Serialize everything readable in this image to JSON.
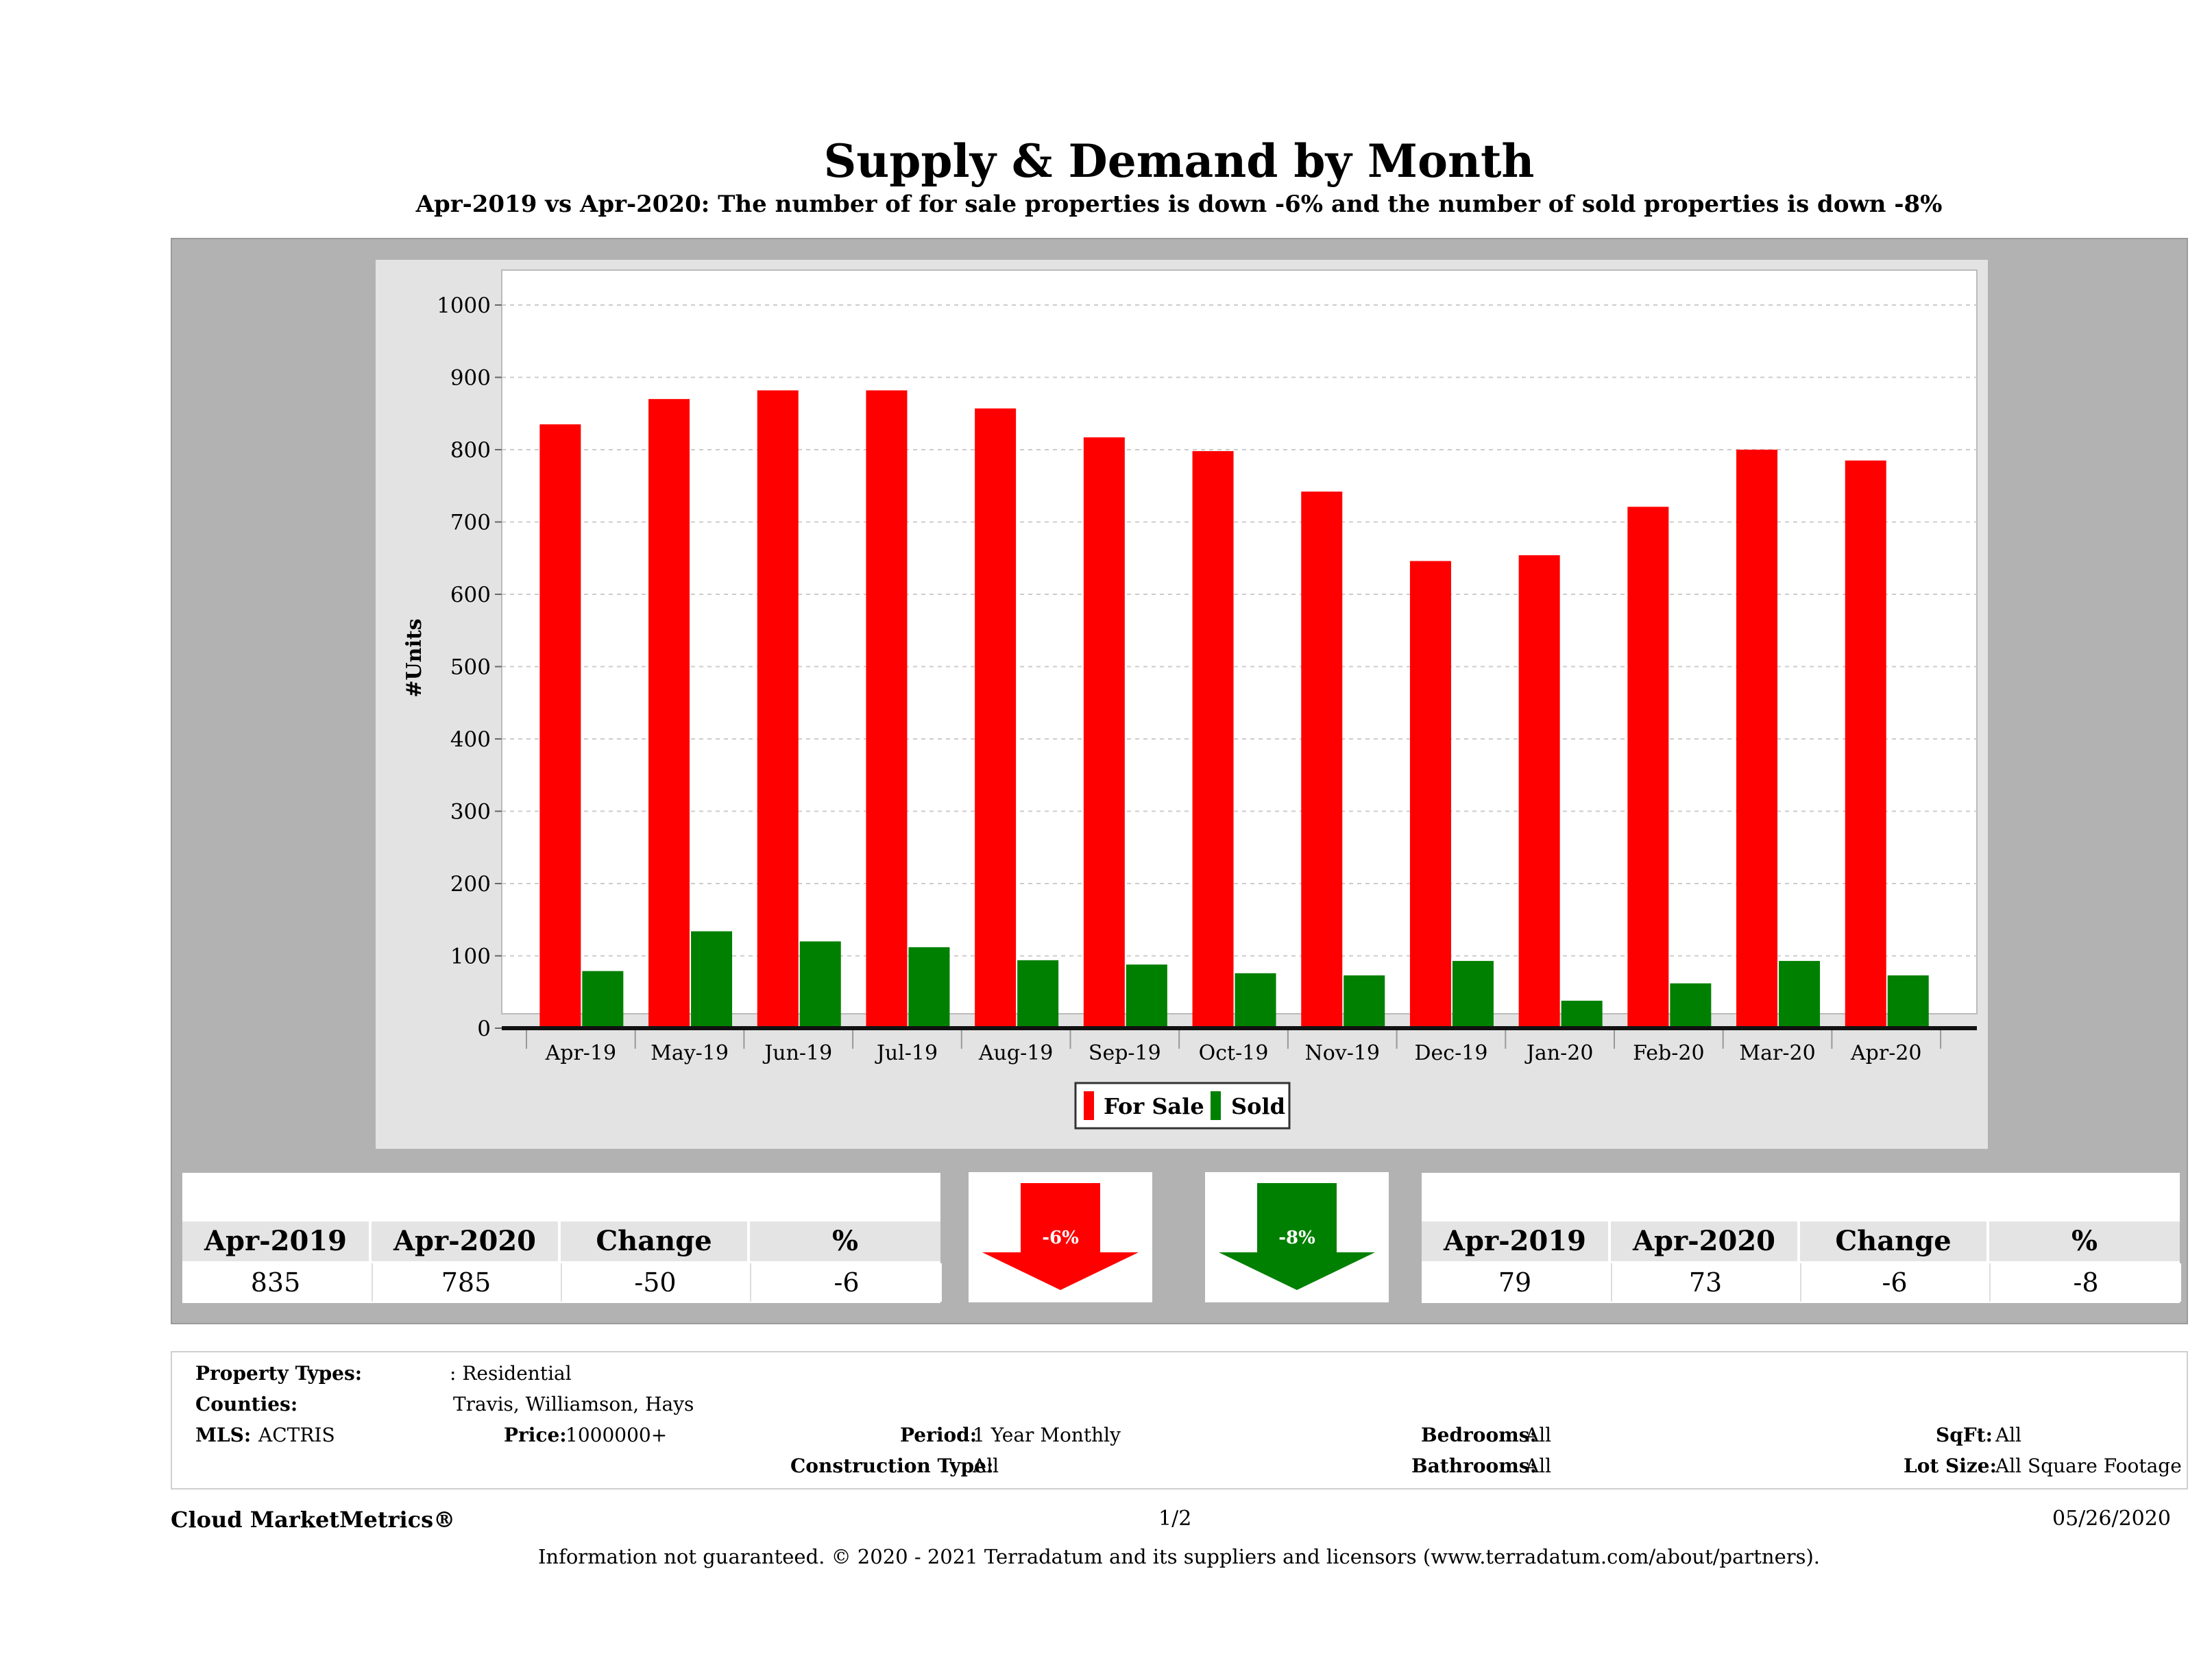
{
  "report": {
    "title": "Supply & Demand by Month",
    "subtitle": "Apr-2019 vs Apr-2020: The number of for sale properties is down -6% and the number of sold properties is down -8%"
  },
  "chart_data": {
    "type": "bar",
    "categories": [
      "Apr-19",
      "May-19",
      "Jun-19",
      "Jul-19",
      "Aug-19",
      "Sep-19",
      "Oct-19",
      "Nov-19",
      "Dec-19",
      "Jan-20",
      "Feb-20",
      "Mar-20",
      "Apr-20"
    ],
    "series": [
      {
        "name": "For Sale",
        "color": "#ff0000",
        "values": [
          835,
          870,
          882,
          882,
          857,
          817,
          798,
          742,
          646,
          654,
          721,
          800,
          785
        ]
      },
      {
        "name": "Sold",
        "color": "#008000",
        "values": [
          79,
          134,
          120,
          112,
          94,
          88,
          76,
          73,
          93,
          38,
          62,
          93,
          73
        ]
      }
    ],
    "ylabel": "#Units",
    "xlabel": "",
    "ylim": [
      0,
      1000
    ],
    "yticks": [
      0,
      100,
      200,
      300,
      400,
      500,
      600,
      700,
      800,
      900,
      1000
    ],
    "grid": true,
    "legend_position": "bottom-center"
  },
  "for_sale_table": {
    "headers": [
      "Apr-2019",
      "Apr-2020",
      "Change",
      "%"
    ],
    "values": [
      "835",
      "785",
      "-50",
      "-6"
    ]
  },
  "sold_table": {
    "headers": [
      "Apr-2019",
      "Apr-2020",
      "Change",
      "%"
    ],
    "values": [
      "79",
      "73",
      "-6",
      "-8"
    ]
  },
  "arrows": {
    "for_sale": {
      "label": "-6%",
      "color": "#ff0000"
    },
    "sold": {
      "label": "-8%",
      "color": "#008000"
    }
  },
  "criteria": {
    "property_types_label": "Property Types:",
    "property_types_value": ": Residential",
    "counties_label": "Counties:",
    "counties_value": "Travis, Williamson, Hays",
    "mls_label": "MLS:",
    "mls_value": "ACTRIS",
    "price_label": "Price:",
    "price_value": "1000000+",
    "period_label": "Period:",
    "period_value": "1 Year Monthly",
    "construction_label": "Construction Type:",
    "construction_value": "All",
    "bedrooms_label": "Bedrooms:",
    "bedrooms_value": "All",
    "bathrooms_label": "Bathrooms:",
    "bathrooms_value": "All",
    "sqft_label": "SqFt:",
    "sqft_value": "All",
    "lot_size_label": "Lot Size:",
    "lot_size_value": "All Square Footage"
  },
  "footer": {
    "brand": "Cloud MarketMetrics®",
    "page": "1/2",
    "date": "05/26/2020",
    "disclaimer": "Information not guaranteed. © 2020 - 2021 Terradatum and its suppliers and licensors (www.terradatum.com/about/partners)."
  }
}
